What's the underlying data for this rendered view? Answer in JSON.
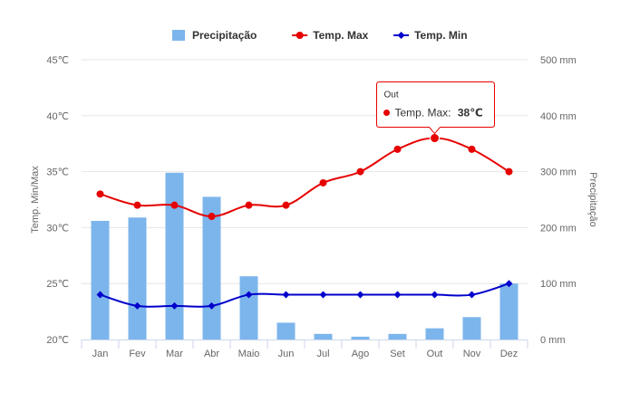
{
  "legend": [
    {
      "name": "Precipitação",
      "kind": "bar",
      "color": "#7cb5ec"
    },
    {
      "name": "Temp. Max",
      "kind": "line",
      "color": "#e60000"
    },
    {
      "name": "Temp. Min",
      "kind": "line",
      "color": "#0000cc"
    }
  ],
  "tooltip": {
    "header": "Out",
    "series_label": "Temp. Max:",
    "value_text": "38℃"
  },
  "chart_data": {
    "type": "bar",
    "categories": [
      "Jan",
      "Fev",
      "Mar",
      "Abr",
      "Maio",
      "Jun",
      "Jul",
      "Ago",
      "Set",
      "Out",
      "Nov",
      "Dez"
    ],
    "y_left": {
      "label": "Temp. Min/Max",
      "range": [
        20,
        45
      ],
      "ticks": [
        20,
        25,
        30,
        35,
        40,
        45
      ],
      "tick_labels": [
        "20℃",
        "25℃",
        "30℃",
        "35℃",
        "40℃",
        "45℃"
      ]
    },
    "y_right": {
      "label": "Precipitação",
      "range": [
        0,
        500
      ],
      "ticks": [
        0,
        100,
        200,
        300,
        400,
        500
      ],
      "tick_labels": [
        "0 mm",
        "100 mm",
        "200 mm",
        "300 mm",
        "400 mm",
        "500 mm"
      ]
    },
    "series": [
      {
        "name": "Precipitação",
        "type": "bar",
        "axis": "right",
        "color": "#7cb5ec",
        "values": [
          212,
          218,
          298,
          255,
          113,
          30,
          10,
          5,
          10,
          20,
          40,
          100
        ]
      },
      {
        "name": "Temp. Max",
        "type": "line",
        "axis": "left",
        "color": "#e60000",
        "values": [
          33,
          32,
          32,
          31,
          32,
          32,
          34,
          35,
          37,
          38,
          37,
          35
        ]
      },
      {
        "name": "Temp. Min",
        "type": "line",
        "axis": "left",
        "color": "#0000cc",
        "values": [
          24,
          23,
          23,
          23,
          24,
          24,
          24,
          24,
          24,
          24,
          24,
          25
        ]
      }
    ],
    "grid": true,
    "legend_position": "top-center",
    "highlight": {
      "series": "Temp. Max",
      "category": "Out"
    }
  }
}
